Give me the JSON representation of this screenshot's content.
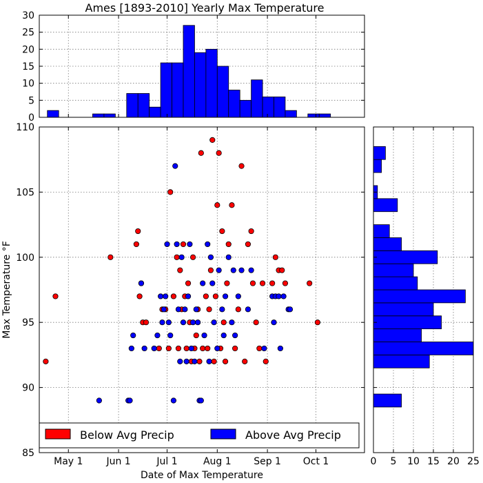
{
  "chart_data": {
    "type": "scatter",
    "title": "Ames [1893-2010] Yearly Max Temperature",
    "xlabel": "Date of Max Temperature",
    "ylabel": "Max Temperature °F",
    "x_unit": "date",
    "xlim": [
      "1900-04-13",
      "1900-10-31"
    ],
    "ylim": [
      85,
      110
    ],
    "x_ticks": [
      {
        "date": "1900-05-01",
        "label": "May 1"
      },
      {
        "date": "1900-06-01",
        "label": "Jun 1"
      },
      {
        "date": "1900-07-01",
        "label": "Jul 1"
      },
      {
        "date": "1900-08-01",
        "label": "Aug 1"
      },
      {
        "date": "1900-09-01",
        "label": "Sep 1"
      },
      {
        "date": "1900-10-01",
        "label": "Oct 1"
      }
    ],
    "y_ticks": [
      85,
      90,
      95,
      100,
      105,
      110
    ],
    "grid": true,
    "legend_position": "bottom",
    "colors": {
      "below": "#ff0000",
      "above": "#0000ff"
    },
    "series": [
      {
        "name": "Below Avg Precip",
        "color": "#ff0000",
        "points": [
          {
            "x": "1900-04-17",
            "y": 92
          },
          {
            "x": "1900-04-23",
            "y": 97
          },
          {
            "x": "1900-05-27",
            "y": 100
          },
          {
            "x": "1900-06-12",
            "y": 101
          },
          {
            "x": "1900-06-13",
            "y": 102
          },
          {
            "x": "1900-06-14",
            "y": 97
          },
          {
            "x": "1900-06-15",
            "y": 98
          },
          {
            "x": "1900-06-16",
            "y": 95
          },
          {
            "x": "1900-06-18",
            "y": 95
          },
          {
            "x": "1900-06-26",
            "y": 93
          },
          {
            "x": "1900-06-28",
            "y": 96
          },
          {
            "x": "1900-06-30",
            "y": 96
          },
          {
            "x": "1900-07-02",
            "y": 93
          },
          {
            "x": "1900-07-03",
            "y": 105
          },
          {
            "x": "1900-07-05",
            "y": 97
          },
          {
            "x": "1900-07-07",
            "y": 100
          },
          {
            "x": "1900-07-08",
            "y": 93
          },
          {
            "x": "1900-07-09",
            "y": 99
          },
          {
            "x": "1900-07-10",
            "y": 96
          },
          {
            "x": "1900-07-11",
            "y": 101
          },
          {
            "x": "1900-07-12",
            "y": 97
          },
          {
            "x": "1900-07-13",
            "y": 93
          },
          {
            "x": "1900-07-14",
            "y": 98
          },
          {
            "x": "1900-07-15",
            "y": 95
          },
          {
            "x": "1900-07-16",
            "y": 92
          },
          {
            "x": "1900-07-17",
            "y": 100
          },
          {
            "x": "1900-07-18",
            "y": 93
          },
          {
            "x": "1900-07-19",
            "y": 94
          },
          {
            "x": "1900-07-20",
            "y": 96
          },
          {
            "x": "1900-07-21",
            "y": 92
          },
          {
            "x": "1900-07-22",
            "y": 108
          },
          {
            "x": "1900-07-23",
            "y": 93
          },
          {
            "x": "1900-07-25",
            "y": 97
          },
          {
            "x": "1900-07-26",
            "y": 93
          },
          {
            "x": "1900-07-27",
            "y": 96
          },
          {
            "x": "1900-07-28",
            "y": 99
          },
          {
            "x": "1900-07-29",
            "y": 109
          },
          {
            "x": "1900-07-30",
            "y": 92
          },
          {
            "x": "1900-07-31",
            "y": 97
          },
          {
            "x": "1900-08-01",
            "y": 104
          },
          {
            "x": "1900-08-02",
            "y": 108
          },
          {
            "x": "1900-08-03",
            "y": 93
          },
          {
            "x": "1900-08-04",
            "y": 102
          },
          {
            "x": "1900-08-05",
            "y": 95
          },
          {
            "x": "1900-08-06",
            "y": 92
          },
          {
            "x": "1900-08-07",
            "y": 98
          },
          {
            "x": "1900-08-08",
            "y": 101
          },
          {
            "x": "1900-08-10",
            "y": 104
          },
          {
            "x": "1900-08-12",
            "y": 93
          },
          {
            "x": "1900-08-14",
            "y": 96
          },
          {
            "x": "1900-08-16",
            "y": 107
          },
          {
            "x": "1900-08-18",
            "y": 92
          },
          {
            "x": "1900-08-20",
            "y": 101
          },
          {
            "x": "1900-08-22",
            "y": 102
          },
          {
            "x": "1900-08-23",
            "y": 98
          },
          {
            "x": "1900-08-25",
            "y": 95
          },
          {
            "x": "1900-08-27",
            "y": 93
          },
          {
            "x": "1900-08-29",
            "y": 98
          },
          {
            "x": "1900-08-31",
            "y": 92
          },
          {
            "x": "1900-09-04",
            "y": 98
          },
          {
            "x": "1900-09-06",
            "y": 100
          },
          {
            "x": "1900-09-08",
            "y": 99
          },
          {
            "x": "1900-09-10",
            "y": 99
          },
          {
            "x": "1900-09-12",
            "y": 98
          },
          {
            "x": "1900-09-27",
            "y": 98
          },
          {
            "x": "1900-10-02",
            "y": 95
          }
        ]
      },
      {
        "name": "Above Avg Precip",
        "color": "#0000ff",
        "points": [
          {
            "x": "1900-05-20",
            "y": 89
          },
          {
            "x": "1900-06-07",
            "y": 89
          },
          {
            "x": "1900-06-08",
            "y": 89
          },
          {
            "x": "1900-06-09",
            "y": 93
          },
          {
            "x": "1900-06-10",
            "y": 94
          },
          {
            "x": "1900-06-15",
            "y": 98
          },
          {
            "x": "1900-06-17",
            "y": 93
          },
          {
            "x": "1900-06-23",
            "y": 93
          },
          {
            "x": "1900-06-25",
            "y": 94
          },
          {
            "x": "1900-06-27",
            "y": 97
          },
          {
            "x": "1900-06-28",
            "y": 95
          },
          {
            "x": "1900-06-29",
            "y": 96
          },
          {
            "x": "1900-06-30",
            "y": 97
          },
          {
            "x": "1900-07-01",
            "y": 101
          },
          {
            "x": "1900-07-02",
            "y": 95
          },
          {
            "x": "1900-07-03",
            "y": 94
          },
          {
            "x": "1900-07-05",
            "y": 89
          },
          {
            "x": "1900-07-06",
            "y": 107
          },
          {
            "x": "1900-07-07",
            "y": 101
          },
          {
            "x": "1900-07-08",
            "y": 96
          },
          {
            "x": "1900-07-09",
            "y": 92
          },
          {
            "x": "1900-07-10",
            "y": 100
          },
          {
            "x": "1900-07-11",
            "y": 95
          },
          {
            "x": "1900-07-12",
            "y": 96
          },
          {
            "x": "1900-07-13",
            "y": 92
          },
          {
            "x": "1900-07-14",
            "y": 97
          },
          {
            "x": "1900-07-15",
            "y": 101
          },
          {
            "x": "1900-07-16",
            "y": 93
          },
          {
            "x": "1900-07-17",
            "y": 95
          },
          {
            "x": "1900-07-18",
            "y": 92
          },
          {
            "x": "1900-07-19",
            "y": 96
          },
          {
            "x": "1900-07-20",
            "y": 95
          },
          {
            "x": "1900-07-21",
            "y": 89
          },
          {
            "x": "1900-07-22",
            "y": 89
          },
          {
            "x": "1900-07-23",
            "y": 98
          },
          {
            "x": "1900-07-24",
            "y": 94
          },
          {
            "x": "1900-07-26",
            "y": 101
          },
          {
            "x": "1900-07-27",
            "y": 92
          },
          {
            "x": "1900-07-28",
            "y": 100
          },
          {
            "x": "1900-07-29",
            "y": 98
          },
          {
            "x": "1900-07-30",
            "y": 95
          },
          {
            "x": "1900-08-01",
            "y": 93
          },
          {
            "x": "1900-08-02",
            "y": 99
          },
          {
            "x": "1900-08-04",
            "y": 96
          },
          {
            "x": "1900-08-05",
            "y": 94
          },
          {
            "x": "1900-08-06",
            "y": 97
          },
          {
            "x": "1900-08-08",
            "y": 100
          },
          {
            "x": "1900-08-10",
            "y": 95
          },
          {
            "x": "1900-08-11",
            "y": 99
          },
          {
            "x": "1900-08-12",
            "y": 94
          },
          {
            "x": "1900-08-14",
            "y": 97
          },
          {
            "x": "1900-08-16",
            "y": 99
          },
          {
            "x": "1900-08-20",
            "y": 96
          },
          {
            "x": "1900-08-22",
            "y": 99
          },
          {
            "x": "1900-08-30",
            "y": 93
          },
          {
            "x": "1900-09-04",
            "y": 97
          },
          {
            "x": "1900-09-05",
            "y": 95
          },
          {
            "x": "1900-09-06",
            "y": 97
          },
          {
            "x": "1900-09-08",
            "y": 97
          },
          {
            "x": "1900-09-09",
            "y": 93
          },
          {
            "x": "1900-09-11",
            "y": 97
          },
          {
            "x": "1900-09-14",
            "y": 96
          },
          {
            "x": "1900-09-15",
            "y": 96
          }
        ]
      }
    ],
    "histogram_x": {
      "ylim": [
        0,
        30
      ],
      "y_ticks": [
        0,
        5,
        10,
        15,
        20,
        25,
        30
      ],
      "bins": [
        {
          "start": "1900-04-18",
          "end": "1900-04-25",
          "count": 2
        },
        {
          "start": "1900-05-16",
          "end": "1900-05-23",
          "count": 1
        },
        {
          "start": "1900-05-23",
          "end": "1900-05-30",
          "count": 1
        },
        {
          "start": "1900-06-06",
          "end": "1900-06-13",
          "count": 7
        },
        {
          "start": "1900-06-13",
          "end": "1900-06-20",
          "count": 7
        },
        {
          "start": "1900-06-20",
          "end": "1900-06-27",
          "count": 3
        },
        {
          "start": "1900-06-27",
          "end": "1900-07-04",
          "count": 16
        },
        {
          "start": "1900-07-04",
          "end": "1900-07-11",
          "count": 16
        },
        {
          "start": "1900-07-11",
          "end": "1900-07-18",
          "count": 27
        },
        {
          "start": "1900-07-18",
          "end": "1900-07-25",
          "count": 19
        },
        {
          "start": "1900-07-25",
          "end": "1900-08-01",
          "count": 20
        },
        {
          "start": "1900-08-01",
          "end": "1900-08-08",
          "count": 15
        },
        {
          "start": "1900-08-08",
          "end": "1900-08-15",
          "count": 8
        },
        {
          "start": "1900-08-15",
          "end": "1900-08-22",
          "count": 5
        },
        {
          "start": "1900-08-22",
          "end": "1900-08-29",
          "count": 11
        },
        {
          "start": "1900-08-29",
          "end": "1900-09-05",
          "count": 6
        },
        {
          "start": "1900-09-05",
          "end": "1900-09-12",
          "count": 6
        },
        {
          "start": "1900-09-12",
          "end": "1900-09-19",
          "count": 2
        },
        {
          "start": "1900-09-26",
          "end": "1900-10-03",
          "count": 1
        },
        {
          "start": "1900-10-03",
          "end": "1900-10-10",
          "count": 1
        }
      ]
    },
    "histogram_y": {
      "xlim": [
        0,
        25
      ],
      "x_ticks": [
        0,
        5,
        10,
        15,
        20,
        25
      ],
      "bins": [
        {
          "start": 88.5,
          "end": 89.5,
          "count": 7
        },
        {
          "start": 91.5,
          "end": 92.5,
          "count": 14
        },
        {
          "start": 92.5,
          "end": 93.5,
          "count": 25
        },
        {
          "start": 93.5,
          "end": 94.5,
          "count": 12
        },
        {
          "start": 94.5,
          "end": 95.5,
          "count": 17
        },
        {
          "start": 95.5,
          "end": 96.5,
          "count": 15
        },
        {
          "start": 96.5,
          "end": 97.5,
          "count": 23
        },
        {
          "start": 97.5,
          "end": 98.5,
          "count": 11
        },
        {
          "start": 98.5,
          "end": 99.5,
          "count": 10
        },
        {
          "start": 99.5,
          "end": 100.5,
          "count": 16
        },
        {
          "start": 100.5,
          "end": 101.5,
          "count": 7
        },
        {
          "start": 101.5,
          "end": 102.5,
          "count": 4
        },
        {
          "start": 103.5,
          "end": 104.5,
          "count": 6
        },
        {
          "start": 104.5,
          "end": 105.5,
          "count": 1
        },
        {
          "start": 106.5,
          "end": 107.5,
          "count": 2
        },
        {
          "start": 107.5,
          "end": 108.5,
          "count": 3
        }
      ]
    }
  }
}
